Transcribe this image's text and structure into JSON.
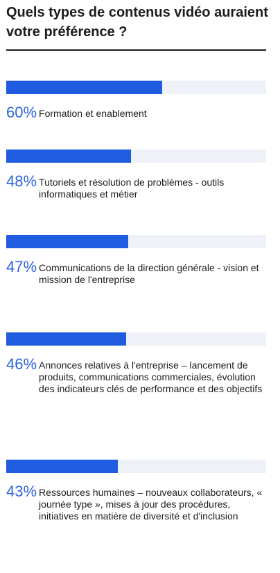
{
  "header": {
    "title": "Quels types de contenus vidéo auraient votre préférence ?"
  },
  "colors": {
    "bar_fill": "#1f5ce0",
    "bar_track": "#eef1f8",
    "percent_text": "#2d63e0",
    "text": "#1c1c1c"
  },
  "chart_data": {
    "type": "bar",
    "orientation": "horizontal",
    "xlim": [
      0,
      100
    ],
    "grid": false,
    "legend": "none",
    "items": [
      {
        "value": 60,
        "value_label": "60%",
        "label": "Formation et enablement"
      },
      {
        "value": 48,
        "value_label": "48%",
        "label": "Tutoriels et résolution de problèmes - outils informatiques et métier"
      },
      {
        "value": 47,
        "value_label": "47%",
        "label": "Communications de la direction générale - vision et mission de l'entreprise"
      },
      {
        "value": 46,
        "value_label": "46%",
        "label": "Annonces relatives à l'entreprise – lancement de produits, communications commerciales, évolution des indicateurs clés de performance et des objectifs"
      },
      {
        "value": 43,
        "value_label": "43%",
        "label": "Ressources humaines – nouveaux collaborateurs, « journée type », mises à jour des procédures, initiatives en matière de diversité et d'inclusion"
      }
    ]
  }
}
